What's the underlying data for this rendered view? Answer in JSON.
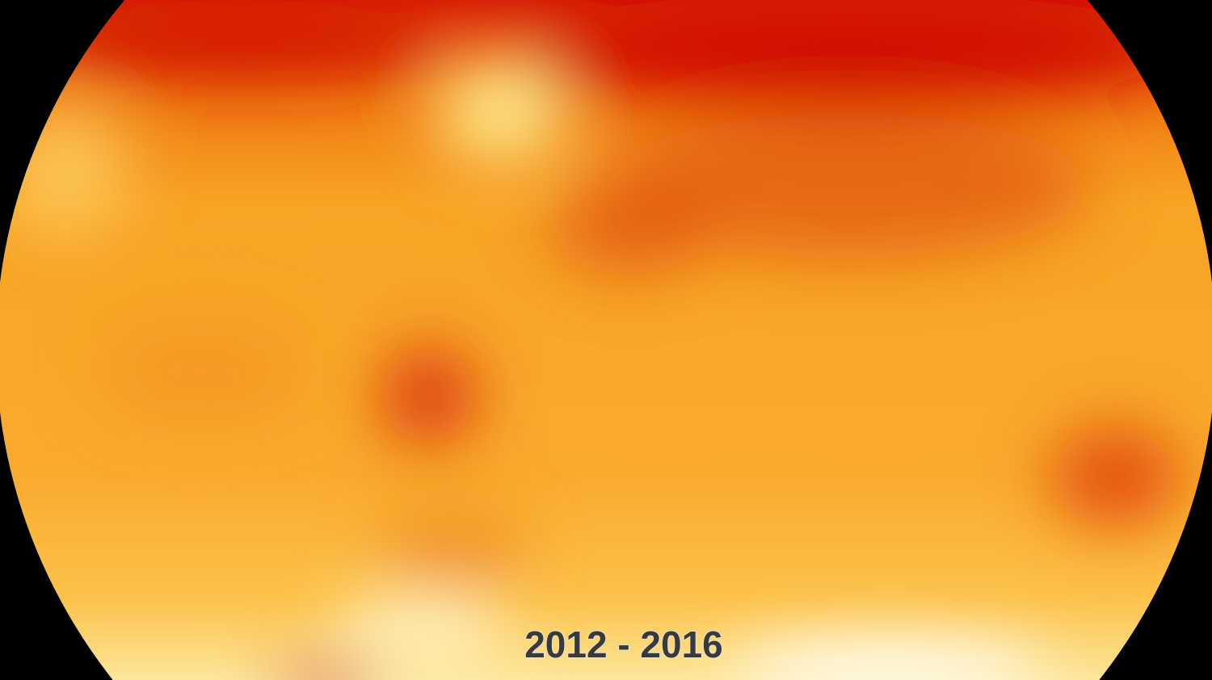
{
  "period_label": "2012 - 2016"
}
